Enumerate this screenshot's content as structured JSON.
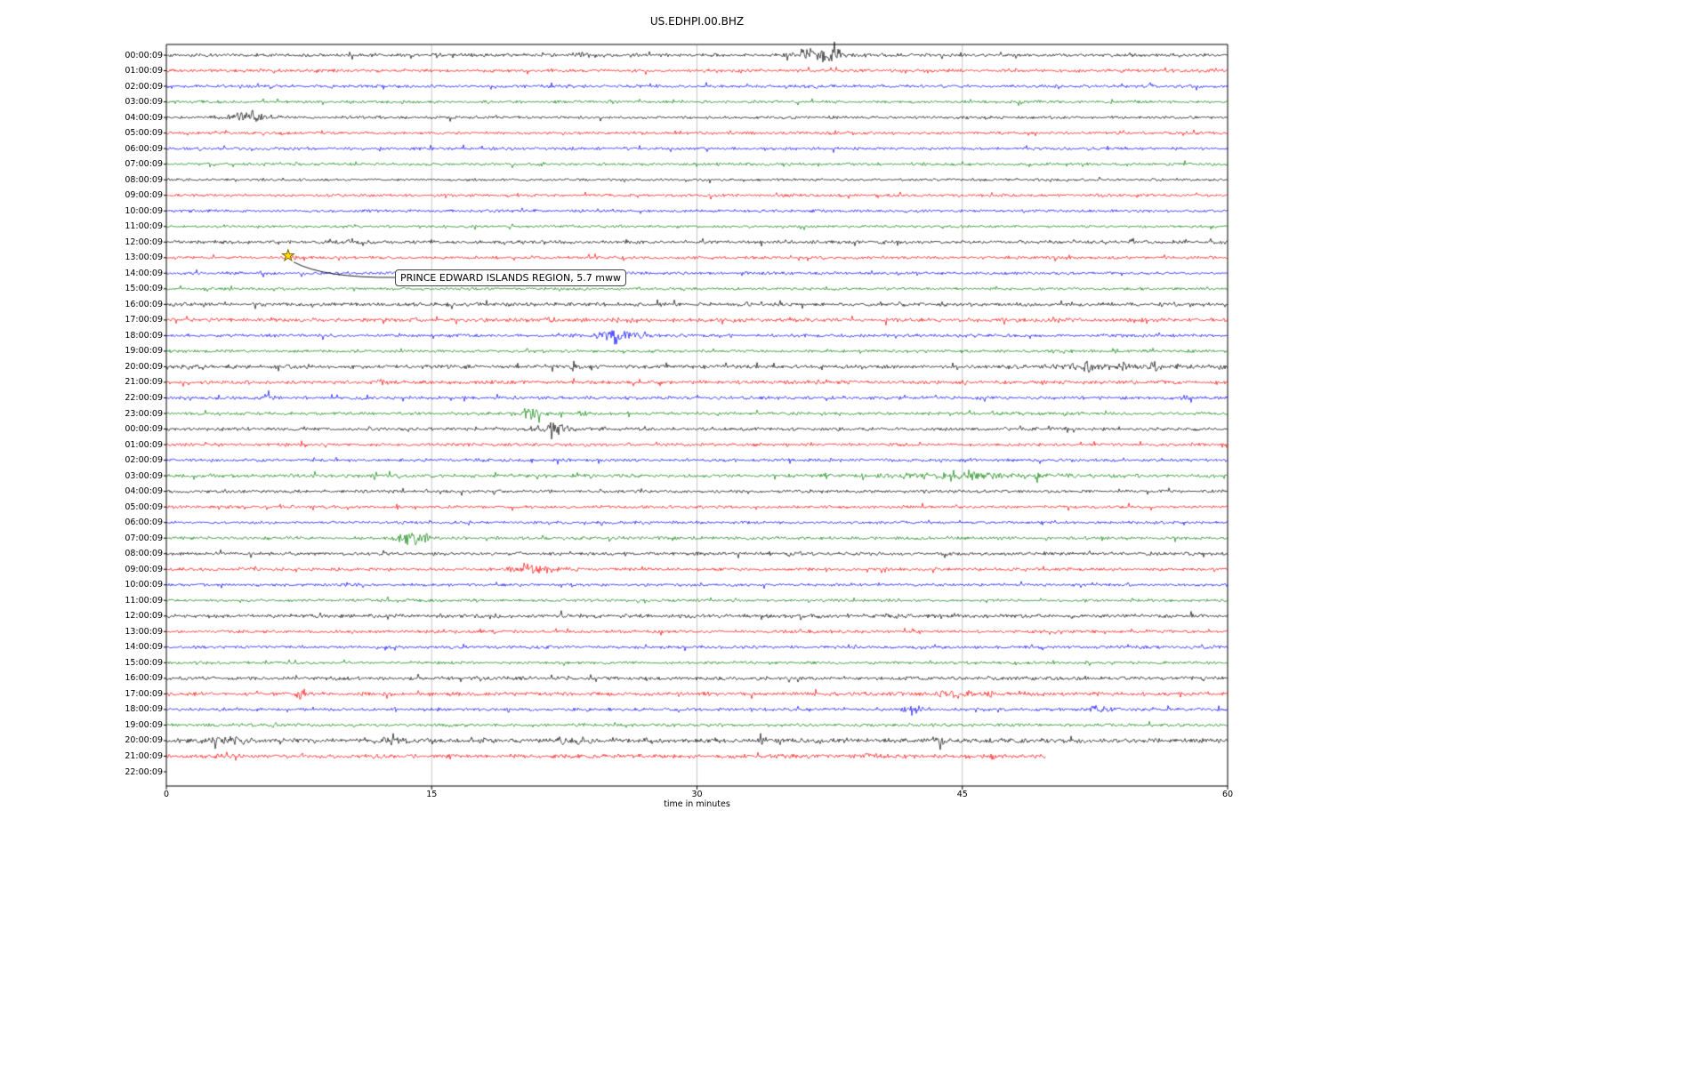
{
  "page": {
    "title": "US.EDHPI.00.BHZ"
  },
  "chart_data": {
    "type": "line",
    "chart_kind": "seismogram-dayplot",
    "title": "US.EDHPI.00.BHZ",
    "xlabel": "time in minutes",
    "xlim": [
      0,
      60
    ],
    "x_ticks": [
      0,
      15,
      30,
      45,
      60
    ],
    "grid_x": [
      15,
      30,
      45
    ],
    "color_map": {
      "black": "#000000",
      "red": "#ff0000",
      "blue": "#0000ff",
      "green": "#008000"
    },
    "trace_color_cycle": [
      "black",
      "red",
      "blue",
      "green"
    ],
    "annotation": {
      "text": "PRINCE EDWARD ISLANDS REGION, 5.7 mww",
      "row_index": 13,
      "row_label": "13:00:09",
      "x_minutes": 6.9,
      "marker": "star",
      "marker_color": "#ffdd00"
    },
    "rows": [
      {
        "label": "00:00:09",
        "color": "black",
        "noise": 1.3,
        "events": [
          {
            "t": 35.7,
            "dur": 2.7,
            "amp": 4.0
          },
          {
            "t": 23.0,
            "dur": 1.0,
            "amp": 1.5
          },
          {
            "t": 15.2,
            "dur": 0.4,
            "amp": 1.5
          }
        ]
      },
      {
        "label": "01:00:09",
        "color": "red",
        "noise": 1.2,
        "events": []
      },
      {
        "label": "02:00:09",
        "color": "blue",
        "noise": 1.2,
        "events": [
          {
            "t": 22.7,
            "dur": 0.6,
            "amp": 1.5
          },
          {
            "t": 55.4,
            "dur": 0.4,
            "amp": 1.2
          }
        ]
      },
      {
        "label": "03:00:09",
        "color": "green",
        "noise": 1.1,
        "events": []
      },
      {
        "label": "04:00:09",
        "color": "black",
        "noise": 1.1,
        "events": [
          {
            "t": 3.3,
            "dur": 2.4,
            "amp": 3.5
          }
        ]
      },
      {
        "label": "05:00:09",
        "color": "red",
        "noise": 1.1,
        "events": []
      },
      {
        "label": "06:00:09",
        "color": "blue",
        "noise": 1.15,
        "events": []
      },
      {
        "label": "07:00:09",
        "color": "green",
        "noise": 1.1,
        "events": []
      },
      {
        "label": "08:00:09",
        "color": "black",
        "noise": 1.0,
        "events": []
      },
      {
        "label": "09:00:09",
        "color": "red",
        "noise": 1.1,
        "events": []
      },
      {
        "label": "10:00:09",
        "color": "blue",
        "noise": 1.1,
        "events": []
      },
      {
        "label": "11:00:09",
        "color": "green",
        "noise": 1.0,
        "events": []
      },
      {
        "label": "12:00:09",
        "color": "black",
        "noise": 1.3,
        "events": []
      },
      {
        "label": "13:00:09",
        "color": "red",
        "noise": 1.15,
        "events": [
          {
            "t": 6.9,
            "dur": 0.4,
            "amp": 1.2
          }
        ]
      },
      {
        "label": "14:00:09",
        "color": "blue",
        "noise": 1.15,
        "events": []
      },
      {
        "label": "15:00:09",
        "color": "green",
        "noise": 1.05,
        "events": []
      },
      {
        "label": "16:00:09",
        "color": "black",
        "noise": 1.4,
        "events": []
      },
      {
        "label": "17:00:09",
        "color": "red",
        "noise": 1.5,
        "events": [
          {
            "t": 21.0,
            "dur": 1.0,
            "amp": 0.8
          },
          {
            "t": 26.0,
            "dur": 1.0,
            "amp": 0.7
          }
        ]
      },
      {
        "label": "18:00:09",
        "color": "blue",
        "noise": 1.25,
        "events": [
          {
            "t": 24.4,
            "dur": 1.9,
            "amp": 4.5
          },
          {
            "t": 26.8,
            "dur": 0.5,
            "amp": 1.5
          }
        ]
      },
      {
        "label": "19:00:09",
        "color": "green",
        "noise": 1.1,
        "events": [
          {
            "t": 53.3,
            "dur": 0.5,
            "amp": 1.5
          }
        ]
      },
      {
        "label": "20:00:09",
        "color": "black",
        "noise": 1.5,
        "events": [
          {
            "t": 22.9,
            "dur": 0.4,
            "amp": 2.5
          },
          {
            "t": 49.7,
            "dur": 8.5,
            "amp": 1.2
          },
          {
            "t": 51.8,
            "dur": 0.4,
            "amp": 2.0
          },
          {
            "t": 55.6,
            "dur": 0.4,
            "amp": 1.8
          }
        ]
      },
      {
        "label": "21:00:09",
        "color": "red",
        "noise": 1.4,
        "events": [
          {
            "t": 11.9,
            "dur": 0.4,
            "amp": 2.0
          },
          {
            "t": 36.8,
            "dur": 0.8,
            "amp": 1.2
          }
        ]
      },
      {
        "label": "22:00:09",
        "color": "blue",
        "noise": 1.25,
        "events": [
          {
            "t": 5.5,
            "dur": 0.5,
            "amp": 4.0
          },
          {
            "t": 57.3,
            "dur": 0.6,
            "amp": 1.5
          }
        ]
      },
      {
        "label": "23:00:09",
        "color": "green",
        "noise": 1.2,
        "events": [
          {
            "t": 19.7,
            "dur": 1.8,
            "amp": 2.8
          },
          {
            "t": 23.3,
            "dur": 0.6,
            "amp": 1.6
          }
        ]
      },
      {
        "label": "00:00:09",
        "color": "black",
        "noise": 1.3,
        "events": [
          {
            "t": 20.8,
            "dur": 2.2,
            "amp": 3.2
          },
          {
            "t": 21.7,
            "dur": 0.3,
            "amp": 3.5
          }
        ]
      },
      {
        "label": "01:00:09",
        "color": "red",
        "noise": 1.2,
        "events": []
      },
      {
        "label": "02:00:09",
        "color": "blue",
        "noise": 1.2,
        "events": [
          {
            "t": 9.5,
            "dur": 0.3,
            "amp": 1.2
          }
        ]
      },
      {
        "label": "03:00:09",
        "color": "green",
        "noise": 1.35,
        "events": [
          {
            "t": 11.6,
            "dur": 0.4,
            "amp": 1.8
          },
          {
            "t": 40.4,
            "dur": 11.0,
            "amp": 1.2
          },
          {
            "t": 45.2,
            "dur": 0.5,
            "amp": 2.8
          },
          {
            "t": 49.1,
            "dur": 0.5,
            "amp": 2.4
          },
          {
            "t": 44.3,
            "dur": 0.4,
            "amp": 2.0
          }
        ]
      },
      {
        "label": "04:00:09",
        "color": "black",
        "noise": 1.2,
        "events": []
      },
      {
        "label": "05:00:09",
        "color": "red",
        "noise": 1.15,
        "events": []
      },
      {
        "label": "06:00:09",
        "color": "blue",
        "noise": 1.1,
        "events": []
      },
      {
        "label": "07:00:09",
        "color": "green",
        "noise": 1.25,
        "events": [
          {
            "t": 12.9,
            "dur": 1.8,
            "amp": 3.5
          },
          {
            "t": 14.4,
            "dur": 0.4,
            "amp": 2.0
          }
        ]
      },
      {
        "label": "08:00:09",
        "color": "black",
        "noise": 1.3,
        "events": []
      },
      {
        "label": "09:00:09",
        "color": "red",
        "noise": 1.2,
        "events": [
          {
            "t": 19.3,
            "dur": 3.0,
            "amp": 2.6
          }
        ]
      },
      {
        "label": "10:00:09",
        "color": "blue",
        "noise": 1.15,
        "events": []
      },
      {
        "label": "11:00:09",
        "color": "green",
        "noise": 1.1,
        "events": []
      },
      {
        "label": "12:00:09",
        "color": "black",
        "noise": 1.5,
        "events": []
      },
      {
        "label": "13:00:09",
        "color": "red",
        "noise": 1.2,
        "events": []
      },
      {
        "label": "14:00:09",
        "color": "blue",
        "noise": 1.2,
        "events": []
      },
      {
        "label": "15:00:09",
        "color": "green",
        "noise": 1.1,
        "events": []
      },
      {
        "label": "16:00:09",
        "color": "black",
        "noise": 1.4,
        "events": []
      },
      {
        "label": "17:00:09",
        "color": "red",
        "noise": 1.45,
        "events": [
          {
            "t": 7.4,
            "dur": 0.6,
            "amp": 3.0
          },
          {
            "t": 43.2,
            "dur": 2.8,
            "amp": 1.4
          },
          {
            "t": 46.5,
            "dur": 0.4,
            "amp": 1.6
          }
        ]
      },
      {
        "label": "18:00:09",
        "color": "blue",
        "noise": 1.25,
        "events": [
          {
            "t": 41.5,
            "dur": 1.4,
            "amp": 1.8
          },
          {
            "t": 51.9,
            "dur": 1.5,
            "amp": 1.6
          },
          {
            "t": 15.2,
            "dur": 0.3,
            "amp": 1.3
          }
        ]
      },
      {
        "label": "19:00:09",
        "color": "green",
        "noise": 1.2,
        "events": [
          {
            "t": 5.9,
            "dur": 0.4,
            "amp": 1.6
          },
          {
            "t": 24.5,
            "dur": 0.3,
            "amp": 1.2
          }
        ]
      },
      {
        "label": "20:00:09",
        "color": "black",
        "noise": 1.7,
        "events": [
          {
            "t": 2.3,
            "dur": 2.5,
            "amp": 1.4
          },
          {
            "t": 12.0,
            "dur": 1.6,
            "amp": 1.2
          },
          {
            "t": 21.8,
            "dur": 2.5,
            "amp": 1.2
          },
          {
            "t": 33.6,
            "dur": 0.25,
            "amp": 3.0
          },
          {
            "t": 42.8,
            "dur": 1.5,
            "amp": 1.2
          }
        ]
      },
      {
        "label": "21:00:09",
        "color": "red",
        "noise": 1.6,
        "end": 49.7,
        "events": [
          {
            "t": 39.0,
            "dur": 2.0,
            "amp": 1.0
          },
          {
            "t": 46.5,
            "dur": 0.3,
            "amp": 1.8
          }
        ]
      },
      {
        "label": "22:00:09",
        "color": "blue",
        "noise": 1.2,
        "end": 0,
        "events": []
      }
    ]
  }
}
